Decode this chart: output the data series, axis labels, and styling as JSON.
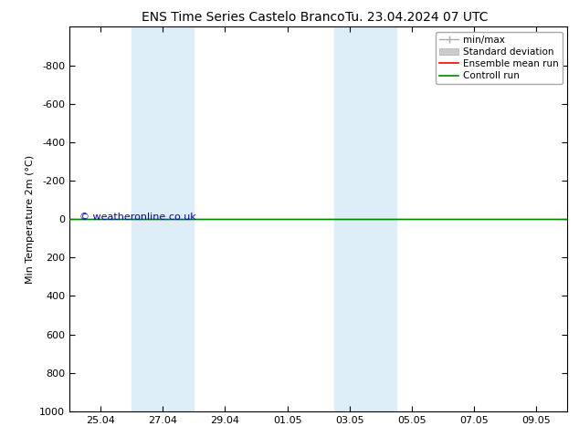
{
  "title_left": "ENS Time Series Castelo Branco",
  "title_right": "Tu. 23.04.2024 07 UTC",
  "ylabel": "Min Temperature 2m (°C)",
  "watermark": "© weatheronline.co.uk",
  "ylim_bottom": 1000,
  "ylim_top": -1000,
  "yticks": [
    -800,
    -600,
    -400,
    -200,
    0,
    200,
    400,
    600,
    800,
    1000
  ],
  "xtick_labels": [
    "25.04",
    "27.04",
    "29.04",
    "01.05",
    "03.05",
    "05.05",
    "07.05",
    "09.05"
  ],
  "xtick_positions": [
    0,
    2,
    4,
    6,
    8,
    10,
    12,
    14
  ],
  "xlim": [
    -1,
    15
  ],
  "blue_bands": [
    [
      1.0,
      2.0
    ],
    [
      2.0,
      3.0
    ],
    [
      7.5,
      8.5
    ],
    [
      8.5,
      9.5
    ]
  ],
  "blue_band_color": "#ddeef8",
  "control_run_y": 0,
  "ensemble_mean_y": 0,
  "control_run_color": "#008800",
  "ensemble_mean_color": "#ff0000",
  "minmax_color": "#aaaaaa",
  "stddev_color": "#cccccc",
  "background_color": "#ffffff",
  "watermark_color": "#0000cc",
  "title_fontsize": 10,
  "axis_label_fontsize": 8,
  "tick_fontsize": 8,
  "legend_fontsize": 7.5
}
